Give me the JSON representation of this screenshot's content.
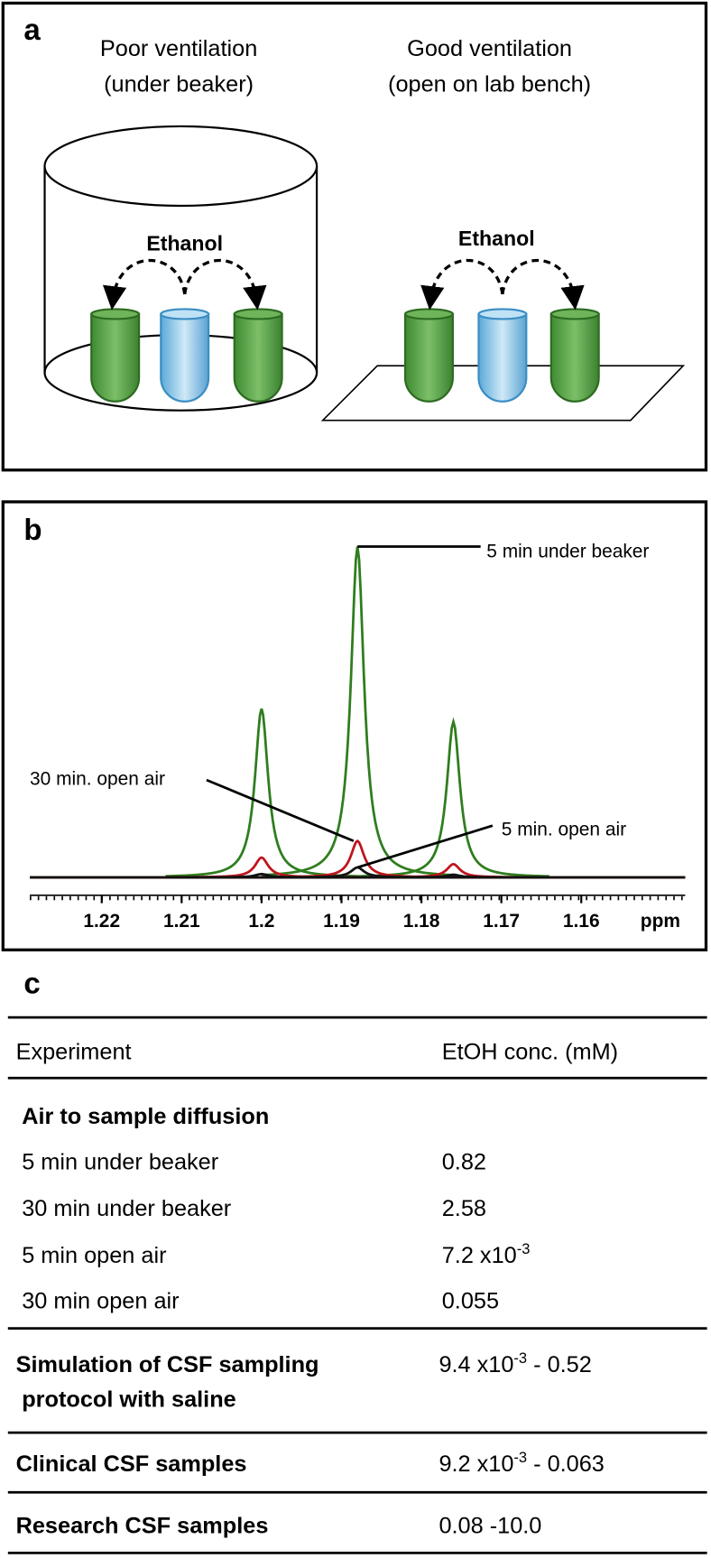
{
  "panel_a": {
    "label": "a",
    "left_title": [
      "Poor ventilation",
      "(under beaker)"
    ],
    "right_title": [
      "Good ventilation",
      "(open on lab bench)"
    ],
    "left_arrow_label": "Ethanol",
    "right_arrow_label": "Ethanol"
  },
  "chart_data": {
    "type": "line",
    "panel_label": "b",
    "x_label": "ppm",
    "xlim": [
      1.229,
      1.147
    ],
    "xticks": [
      1.22,
      1.21,
      1.2,
      1.19,
      1.18,
      1.17,
      1.16
    ],
    "ylim": [
      0,
      100
    ],
    "series": [
      {
        "name": "5 min under beaker",
        "color": "#2e7d1e",
        "x": [
          1.2,
          1.188,
          1.176
        ],
        "values": [
          51,
          100,
          47
        ]
      },
      {
        "name": "30 min. open air",
        "color": "#c0141b",
        "x": [
          1.2,
          1.188,
          1.176
        ],
        "values": [
          6,
          11,
          4
        ]
      },
      {
        "name": "5 min. open air",
        "color": "#111111",
        "x": [
          1.2,
          1.188,
          1.176
        ],
        "values": [
          1,
          3,
          0.8
        ]
      }
    ]
  },
  "table": {
    "panel_label": "c",
    "columns": [
      "Experiment",
      "EtOH conc. (mM)"
    ],
    "group_1": {
      "title": "Air to sample diffusion",
      "rows": [
        [
          "5 min under beaker",
          "0.82"
        ],
        [
          "30 min under beaker",
          "2.58"
        ],
        [
          "5 min open air",
          {
            "text": "7.2 x10",
            "sup": "-3"
          }
        ],
        [
          "30 min open air",
          "0.055"
        ]
      ]
    },
    "group_2": {
      "label": [
        "Simulation of CSF sampling",
        "protocol with saline"
      ],
      "value": {
        "text": "9.4 x10",
        "sup": "-3",
        "after": " - 0.52"
      }
    },
    "group_3": {
      "label": "Clinical CSF samples",
      "value": {
        "text": "9.2 x10",
        "sup": "-3",
        "after": " - 0.063"
      }
    },
    "group_4": {
      "label": "Research CSF samples",
      "value": "0.08 -10.0"
    }
  }
}
